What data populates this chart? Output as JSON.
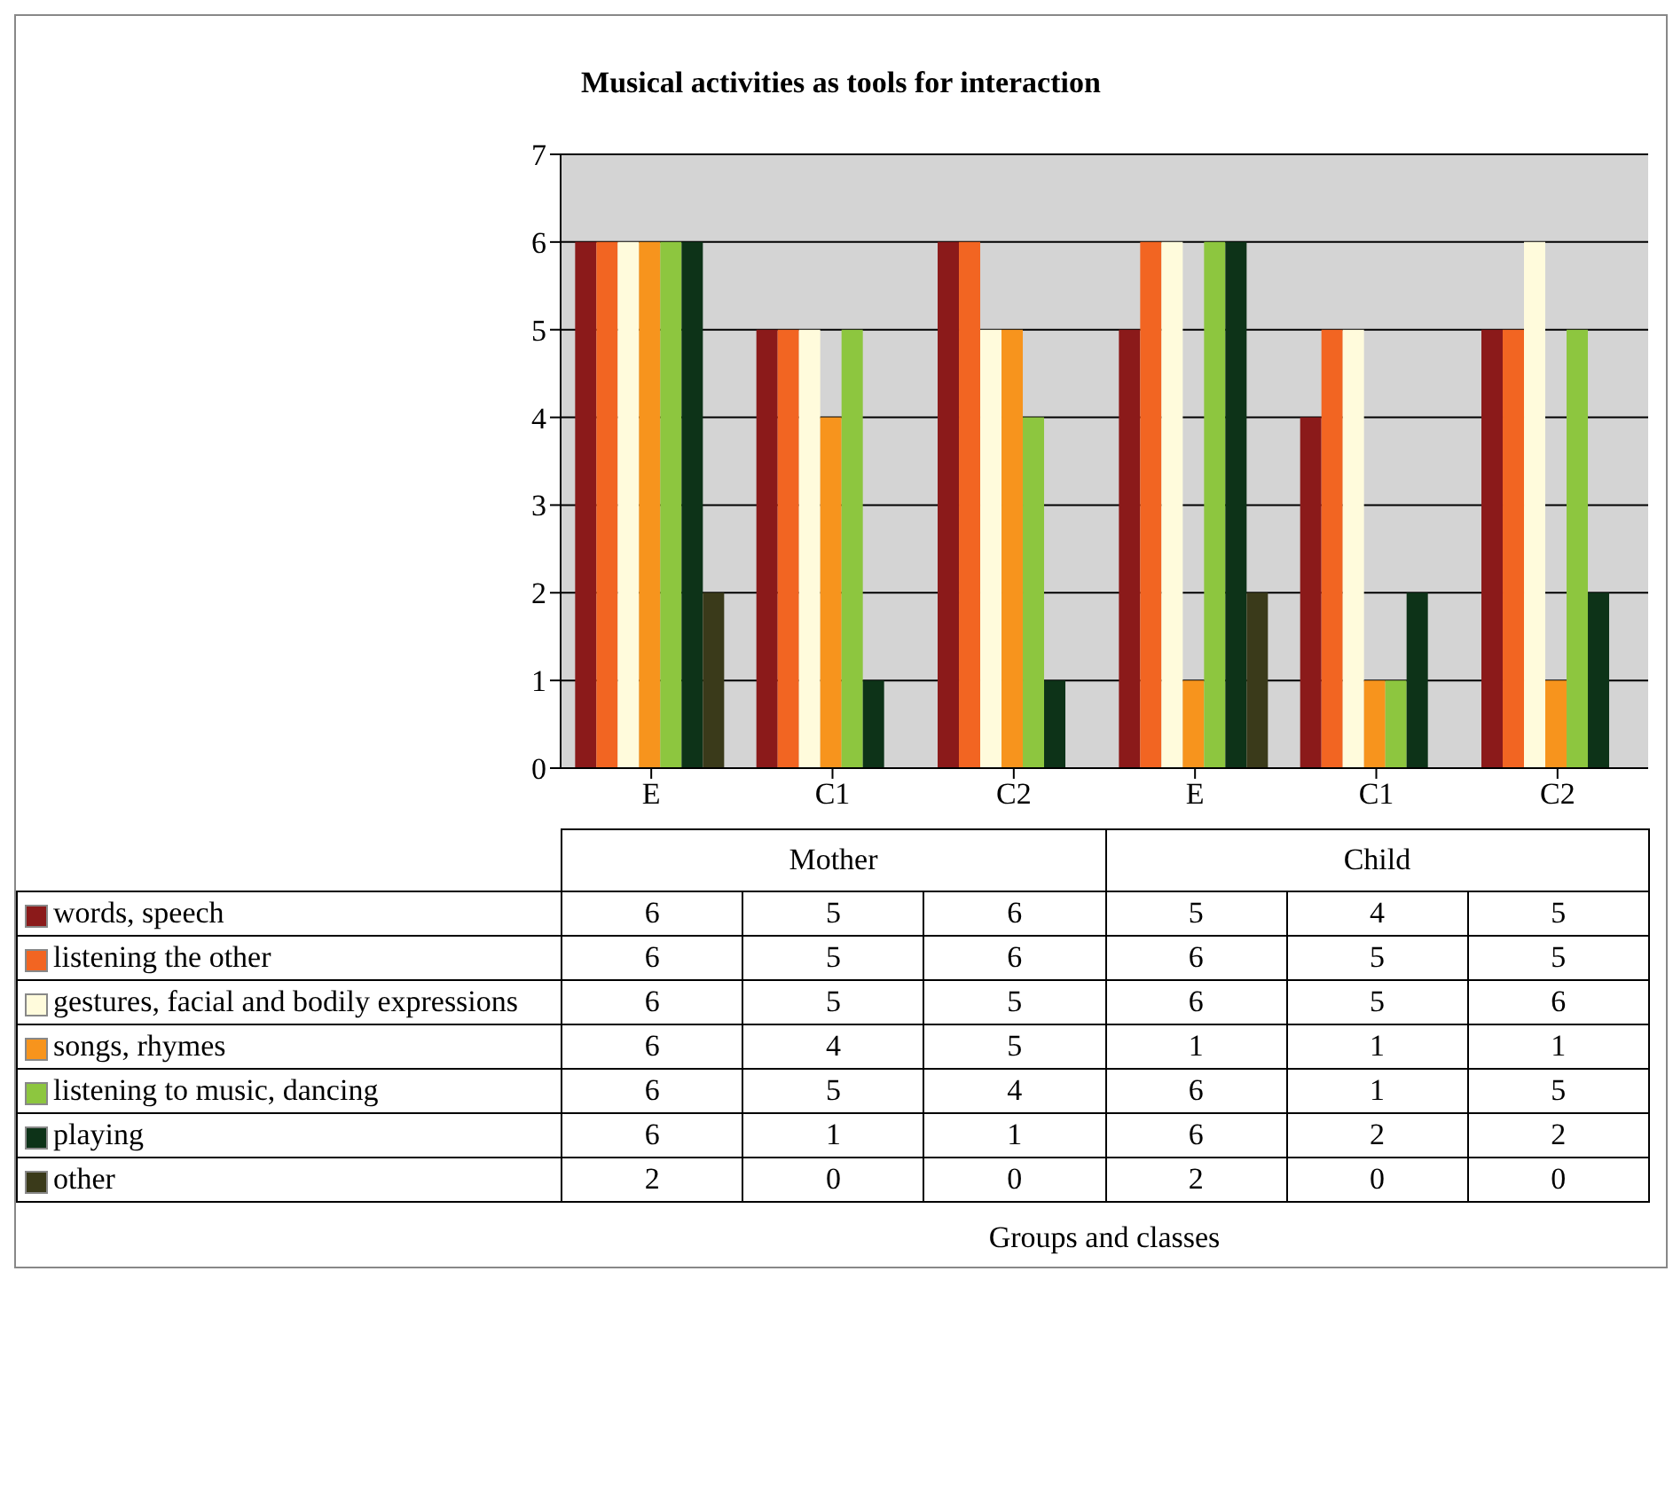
{
  "chart_data": {
    "type": "bar",
    "title": "Musical activities as tools for interaction",
    "categories": [
      "E",
      "C1",
      "C2",
      "E",
      "C1",
      "C2"
    ],
    "annotations": [
      "Mother",
      "Child",
      "Groups and classes"
    ],
    "series": [
      {
        "name": "words, speech",
        "color": "#8b1a1a",
        "values": [
          6,
          5,
          6,
          5,
          4,
          5
        ]
      },
      {
        "name": "listening the other",
        "color": "#f26522",
        "values": [
          6,
          5,
          6,
          6,
          5,
          5
        ]
      },
      {
        "name": "gestures, facial and bodily expressions",
        "color": "#fffbdc",
        "values": [
          6,
          5,
          5,
          6,
          5,
          6
        ]
      },
      {
        "name": "songs, rhymes",
        "color": "#f7941d",
        "values": [
          6,
          4,
          5,
          1,
          1,
          1
        ]
      },
      {
        "name": "listening to music, dancing",
        "color": "#8dc63f",
        "values": [
          6,
          5,
          4,
          6,
          1,
          5
        ]
      },
      {
        "name": "playing",
        "color": "#0d3318",
        "values": [
          6,
          1,
          1,
          6,
          2,
          2
        ]
      },
      {
        "name": "other",
        "color": "#3a3a1a",
        "values": [
          2,
          0,
          0,
          2,
          0,
          0
        ]
      }
    ],
    "ylim": [
      0,
      7
    ],
    "yticks": [
      0,
      1,
      2,
      3,
      4,
      5,
      6,
      7
    ],
    "grid": "y",
    "legend": "bottom",
    "data_labels": true
  }
}
